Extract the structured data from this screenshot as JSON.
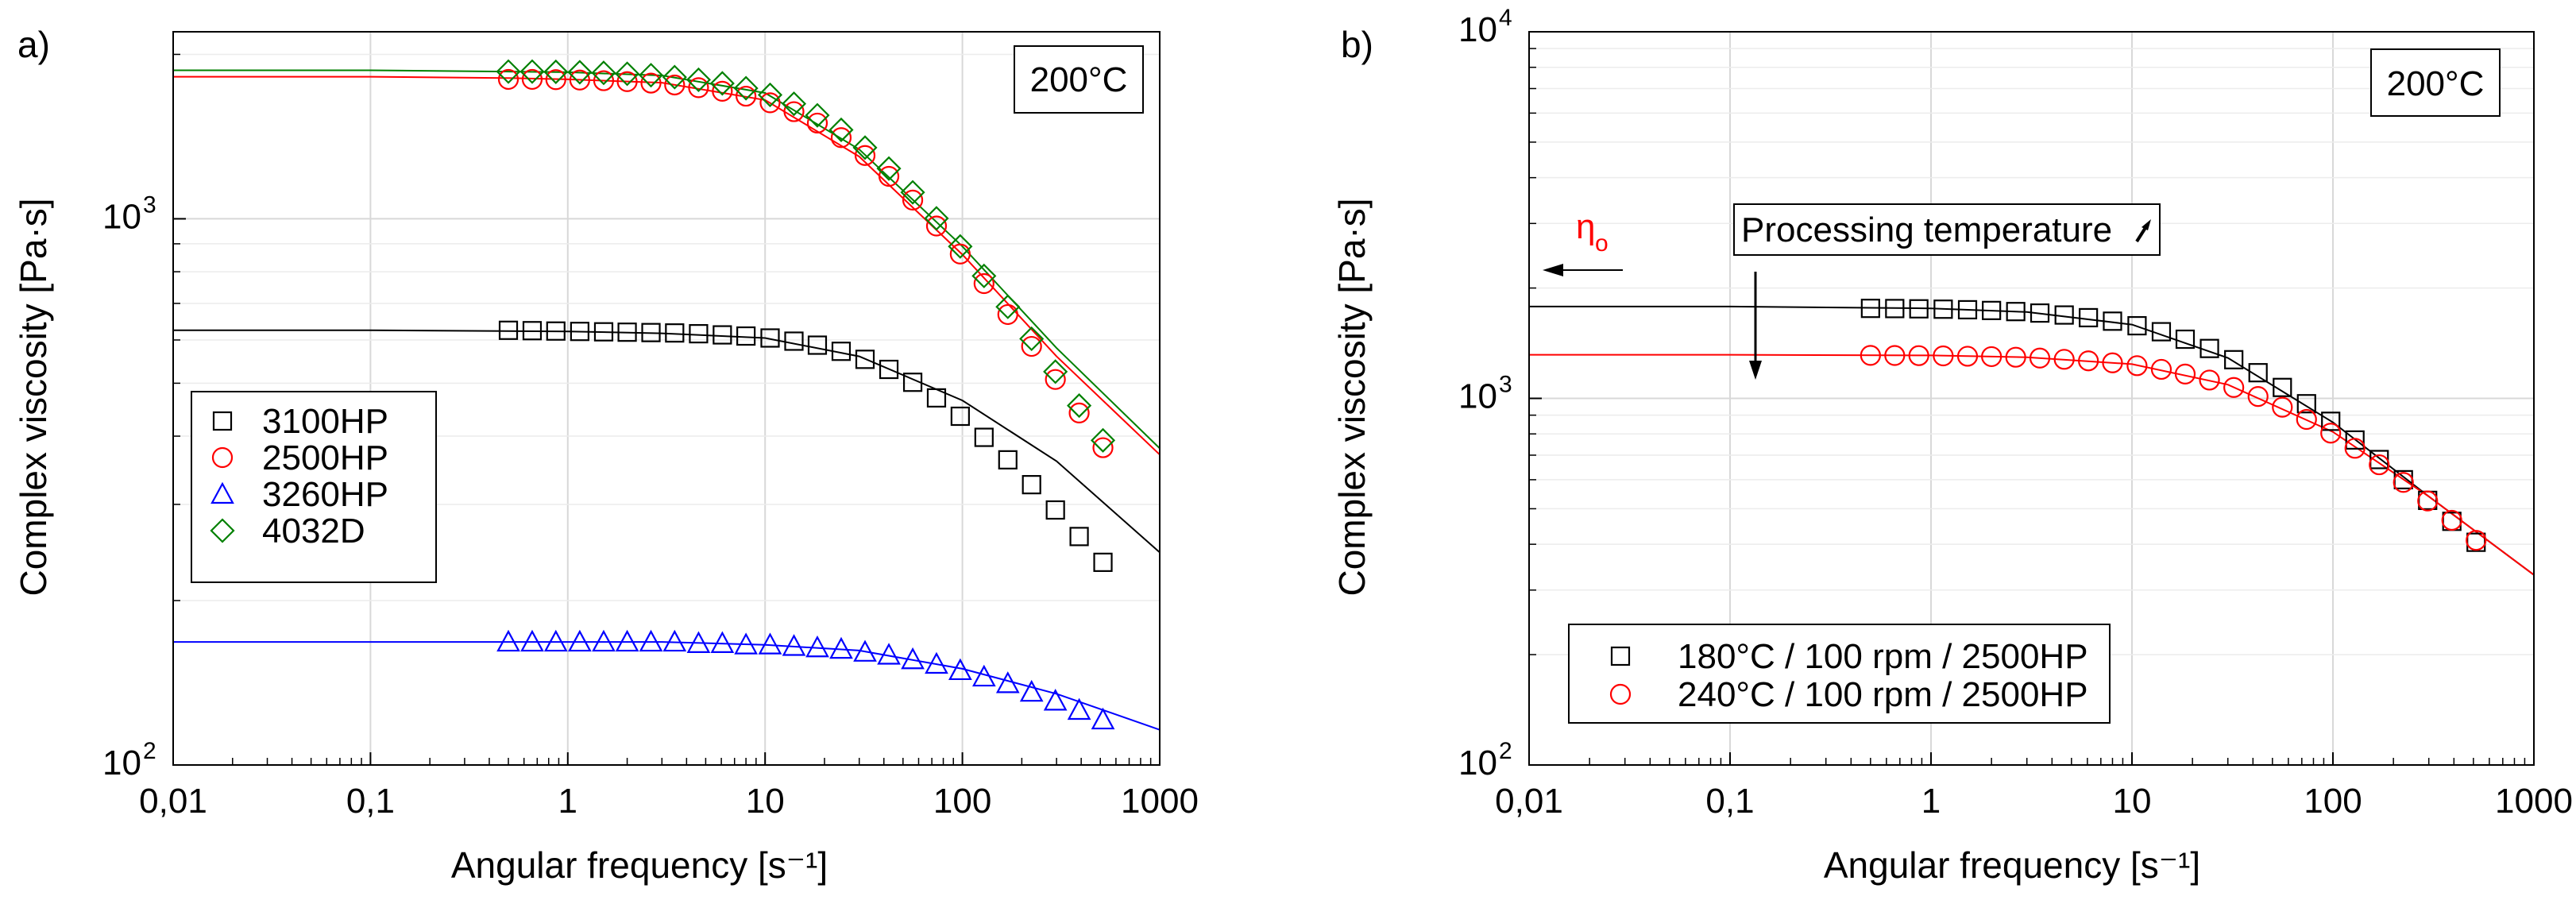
{
  "chart_data": [
    {
      "type": "scatter",
      "panel_label": "a)",
      "temperature_box": "200°C",
      "xlabel": "Angular frequency [s⁻¹]",
      "ylabel": "Complex viscosity [Pa·s]",
      "xscale": "log",
      "yscale": "log",
      "xlim": [
        0.01,
        1000
      ],
      "ylim": [
        100,
        2200
      ],
      "x_ticks": [
        {
          "value": 0.01,
          "label": "0,01"
        },
        {
          "value": 0.1,
          "label": "0,1"
        },
        {
          "value": 1,
          "label": "1"
        },
        {
          "value": 10,
          "label": "10"
        },
        {
          "value": 100,
          "label": "100"
        },
        {
          "value": 1000,
          "label": "1000"
        }
      ],
      "y_ticks": [
        {
          "value": 100,
          "base": "10",
          "exp": "2"
        },
        {
          "value": 1000,
          "base": "10",
          "exp": "3"
        }
      ],
      "grid": true,
      "legend_position": "left-middle",
      "x": [
        0.5,
        0.66,
        0.87,
        1.15,
        1.52,
        2.0,
        2.64,
        3.48,
        4.6,
        6.07,
        8.0,
        10.6,
        14.0,
        18.4,
        24.3,
        32.1,
        42.4,
        56.0,
        73.9,
        97.5,
        128.7,
        169.9,
        224.2,
        296.0,
        390.6,
        515.6
      ],
      "series": [
        {
          "name": "3100HP",
          "marker": "square",
          "color": "#000000",
          "values": [
            625,
            624,
            623,
            622,
            621,
            620,
            619,
            618,
            616,
            613,
            610,
            605,
            597,
            587,
            572,
            553,
            530,
            502,
            470,
            435,
            398,
            362,
            326,
            293,
            262,
            235
          ],
          "fit_x": [
            0.01,
            0.1,
            1,
            3,
            10,
            30,
            100,
            300,
            1000
          ],
          "fit_y": [
            625,
            625,
            622,
            617,
            605,
            560,
            465,
            360,
            245
          ]
        },
        {
          "name": "2500HP",
          "marker": "circle",
          "color": "#ff0000",
          "values": [
            1800,
            1800,
            1798,
            1795,
            1790,
            1783,
            1772,
            1758,
            1738,
            1712,
            1677,
            1631,
            1571,
            1497,
            1408,
            1306,
            1196,
            1082,
            970,
            862,
            761,
            668,
            584,
            508,
            441,
            381
          ],
          "fit_x": [
            0.01,
            0.1,
            0.5,
            1,
            3,
            10,
            30,
            100,
            300,
            1000
          ],
          "fit_y": [
            1820,
            1820,
            1810,
            1800,
            1775,
            1650,
            1300,
            860,
            560,
            370
          ]
        },
        {
          "name": "3260HP",
          "marker": "triangle",
          "color": "#0000ff",
          "values": [
            168,
            168,
            168,
            168,
            168,
            168,
            168,
            168,
            167,
            167,
            166,
            166,
            165,
            164,
            163,
            161,
            159,
            156,
            153,
            149,
            145,
            141,
            136,
            131,
            126,
            121
          ],
          "fit_x": [
            0.01,
            0.1,
            1,
            3,
            10,
            30,
            100,
            300,
            1000
          ],
          "fit_y": [
            168,
            168,
            168,
            168,
            166,
            162,
            150,
            135,
            116
          ]
        },
        {
          "name": "4032D",
          "marker": "diamond",
          "color": "#008000",
          "values": [
            1860,
            1860,
            1858,
            1855,
            1850,
            1843,
            1832,
            1817,
            1797,
            1770,
            1734,
            1686,
            1624,
            1547,
            1455,
            1350,
            1236,
            1118,
            1002,
            890,
            786,
            690,
            603,
            525,
            455,
            393
          ],
          "fit_x": [
            0.01,
            0.1,
            0.5,
            1,
            3,
            10,
            30,
            100,
            300,
            1000
          ],
          "fit_y": [
            1870,
            1870,
            1860,
            1855,
            1830,
            1700,
            1340,
            890,
            580,
            380
          ]
        }
      ]
    },
    {
      "type": "scatter",
      "panel_label": "b)",
      "temperature_box": "200°C",
      "xlabel": "Angular frequency [s⁻¹]",
      "ylabel": "Complex viscosity [Pa·s]",
      "xscale": "log",
      "yscale": "log",
      "xlim": [
        0.01,
        1000
      ],
      "ylim": [
        100,
        10000
      ],
      "x_ticks": [
        {
          "value": 0.01,
          "label": "0,01"
        },
        {
          "value": 0.1,
          "label": "0,1"
        },
        {
          "value": 1,
          "label": "1"
        },
        {
          "value": 10,
          "label": "10"
        },
        {
          "value": 100,
          "label": "100"
        },
        {
          "value": 1000,
          "label": "1000"
        }
      ],
      "y_ticks": [
        {
          "value": 100,
          "base": "10",
          "exp": "2"
        },
        {
          "value": 1000,
          "base": "10",
          "exp": "3"
        },
        {
          "value": 10000,
          "base": "10",
          "exp": "4"
        }
      ],
      "grid": true,
      "legend_position": "bottom-left",
      "annotation": "Processing temperature",
      "eta_label": "η",
      "eta_subscript": "o",
      "x": [
        0.5,
        0.66,
        0.87,
        1.15,
        1.52,
        2.0,
        2.64,
        3.48,
        4.6,
        6.07,
        8.0,
        10.6,
        14.0,
        18.4,
        24.3,
        32.1,
        42.4,
        56.0,
        73.9,
        97.5,
        128.7,
        169.9,
        224.2,
        296.0,
        390.6,
        515.6
      ],
      "series": [
        {
          "name": "180°C / 100 rpm / 2500HP",
          "marker": "square",
          "color": "#000000",
          "values": [
            1760,
            1758,
            1755,
            1751,
            1745,
            1737,
            1725,
            1709,
            1688,
            1660,
            1624,
            1578,
            1520,
            1450,
            1368,
            1275,
            1175,
            1071,
            967,
            866,
            770,
            681,
            600,
            527,
            462,
            405
          ],
          "fit_x": [
            0.01,
            0.1,
            1,
            3,
            10,
            30,
            100,
            300,
            1000
          ],
          "fit_y": [
            1780,
            1780,
            1760,
            1720,
            1590,
            1290,
            860,
            540,
            330
          ]
        },
        {
          "name": "240°C / 100 rpm / 2500HP",
          "marker": "circle",
          "color": "#ff0000",
          "values": [
            1310,
            1309,
            1308,
            1306,
            1303,
            1300,
            1295,
            1288,
            1278,
            1266,
            1250,
            1228,
            1200,
            1165,
            1122,
            1071,
            1012,
            946,
            876,
            804,
            731,
            659,
            590,
            525,
            465,
            410
          ],
          "fit_x": [
            0.01,
            0.1,
            1,
            3,
            10,
            30,
            100,
            300,
            1000
          ],
          "fit_y": [
            1315,
            1315,
            1310,
            1295,
            1240,
            1090,
            810,
            540,
            330
          ]
        }
      ]
    }
  ]
}
